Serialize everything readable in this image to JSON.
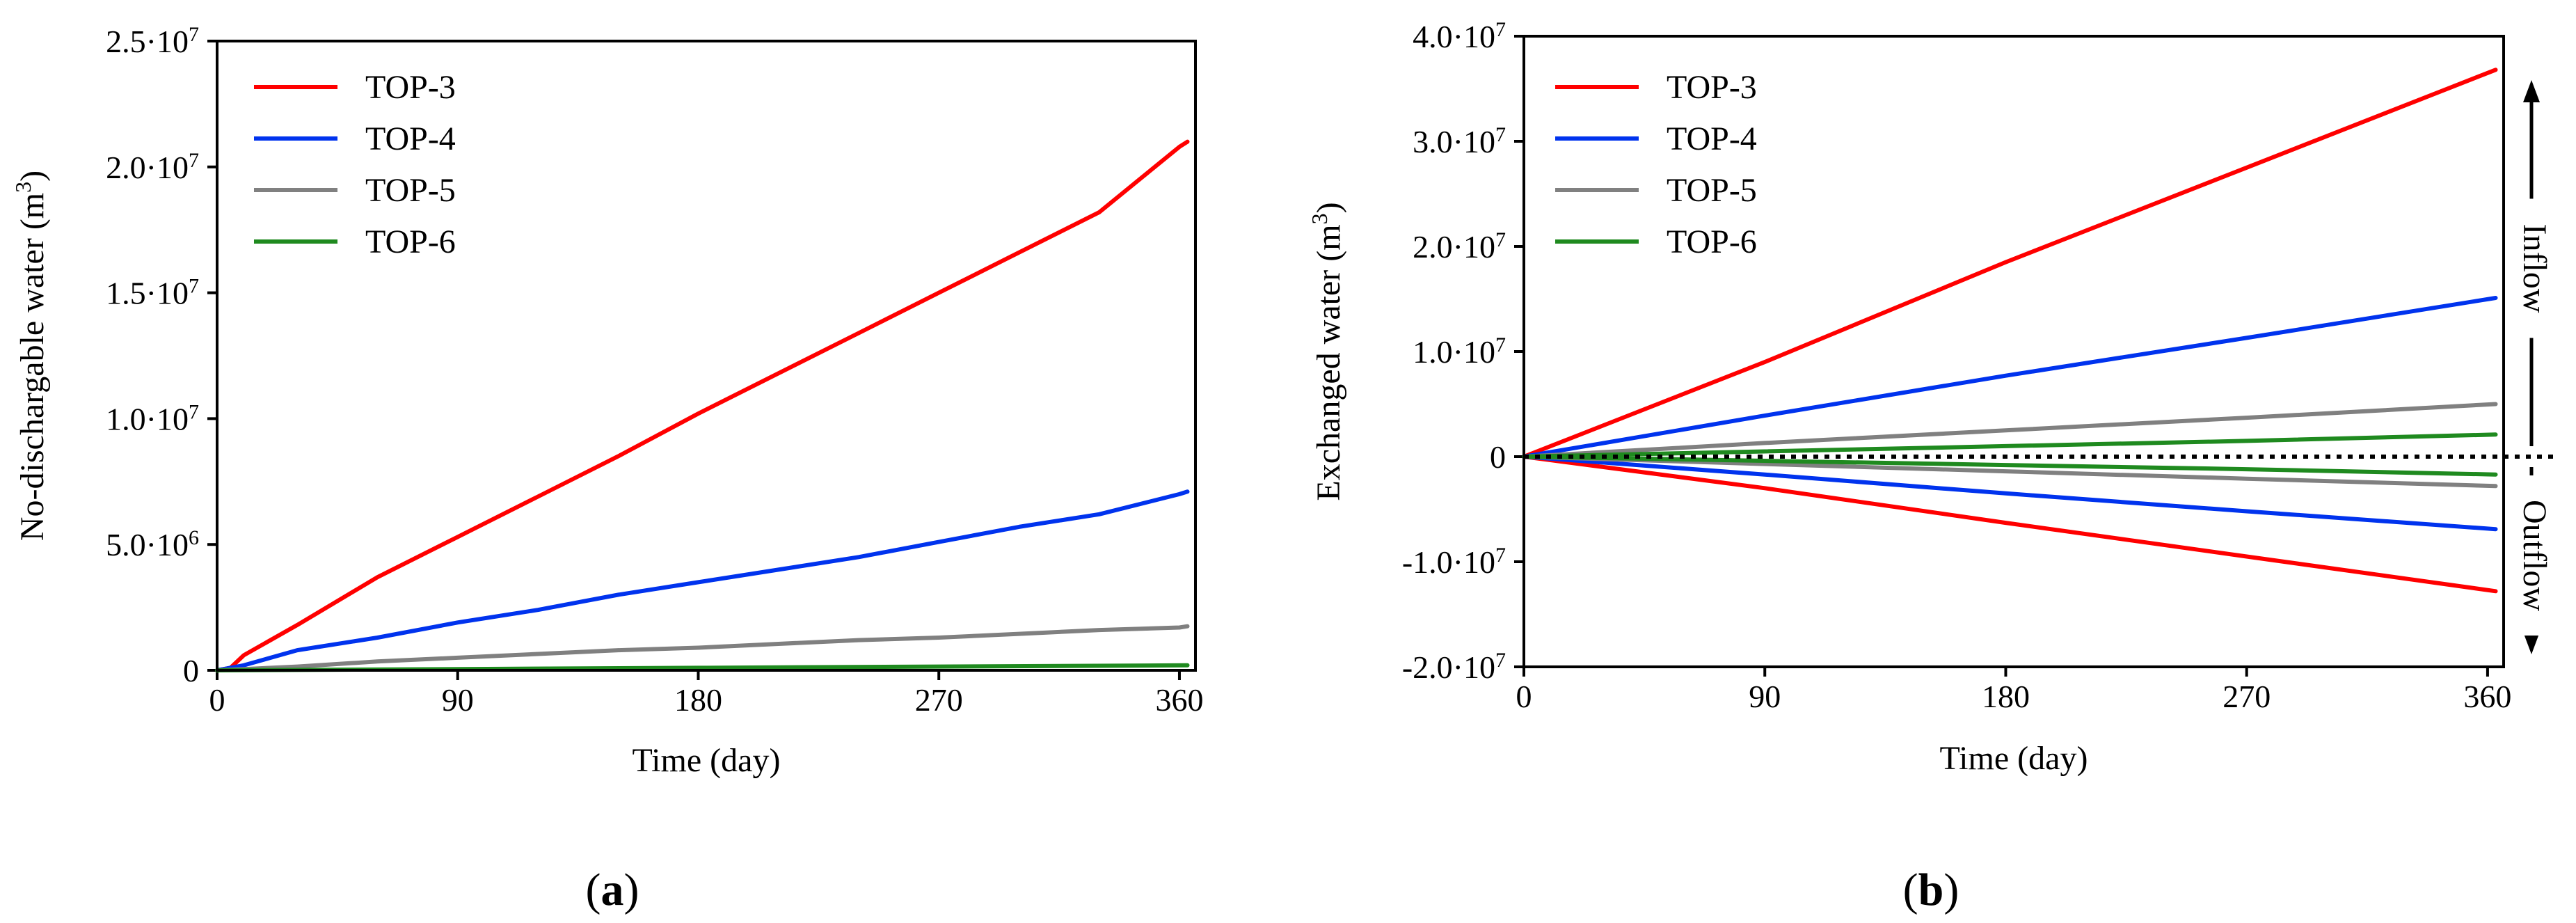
{
  "chart_data": [
    {
      "id": "a",
      "type": "line",
      "panel_label": "a",
      "title": "",
      "xlabel": "Time (day)",
      "ylabel": "No-dischargable water (m³)",
      "xlim": [
        0,
        366
      ],
      "ylim": [
        0,
        25000000
      ],
      "xticks": [
        0,
        90,
        180,
        270,
        360
      ],
      "yticks": [
        {
          "value": 0,
          "base": "0",
          "exp": ""
        },
        {
          "value": 5000000,
          "base": "5.0·10",
          "exp": "6"
        },
        {
          "value": 10000000,
          "base": "1.0·10",
          "exp": "7"
        },
        {
          "value": 15000000,
          "base": "1.5·10",
          "exp": "7"
        },
        {
          "value": 20000000,
          "base": "2.0·10",
          "exp": "7"
        },
        {
          "value": 25000000,
          "base": "2.5·10",
          "exp": "7"
        }
      ],
      "grid": false,
      "legend_position": "top-left",
      "series": [
        {
          "name": "TOP-3",
          "color": "#ff0000",
          "x": [
            0,
            5,
            10,
            30,
            60,
            90,
            120,
            150,
            180,
            210,
            240,
            270,
            300,
            330,
            360,
            363
          ],
          "y": [
            0,
            100000,
            600000,
            1800000,
            3700000,
            5300000,
            6900000,
            8500000,
            10200000,
            11800000,
            13400000,
            15000000,
            16600000,
            18200000,
            20800000,
            21000000
          ]
        },
        {
          "name": "TOP-4",
          "color": "#0033ee",
          "x": [
            0,
            10,
            30,
            60,
            90,
            120,
            150,
            180,
            210,
            240,
            270,
            300,
            330,
            360,
            363
          ],
          "y": [
            0,
            200000,
            800000,
            1300000,
            1900000,
            2400000,
            3000000,
            3500000,
            4000000,
            4500000,
            5100000,
            5700000,
            6200000,
            7000000,
            7100000
          ]
        },
        {
          "name": "TOP-5",
          "color": "#808080",
          "x": [
            0,
            30,
            60,
            90,
            120,
            150,
            180,
            210,
            240,
            270,
            300,
            330,
            360,
            363
          ],
          "y": [
            0,
            150000,
            350000,
            500000,
            650000,
            800000,
            900000,
            1050000,
            1200000,
            1300000,
            1450000,
            1600000,
            1700000,
            1750000
          ]
        },
        {
          "name": "TOP-6",
          "color": "#1f8a1f",
          "x": [
            0,
            90,
            180,
            270,
            363
          ],
          "y": [
            0,
            50000,
            100000,
            150000,
            200000
          ]
        }
      ]
    },
    {
      "id": "b",
      "type": "line",
      "panel_label": "b",
      "title": "",
      "xlabel": "Time (day)",
      "ylabel": "Exchanged water (m³)",
      "xlim": [
        0,
        366
      ],
      "ylim": [
        -20000000,
        40000000
      ],
      "xticks": [
        0,
        90,
        180,
        270,
        360
      ],
      "yticks": [
        {
          "value": -20000000,
          "base": "-2.0·10",
          "exp": "7"
        },
        {
          "value": -10000000,
          "base": "-1.0·10",
          "exp": "7"
        },
        {
          "value": 0,
          "base": "0",
          "exp": ""
        },
        {
          "value": 10000000,
          "base": "1.0·10",
          "exp": "7"
        },
        {
          "value": 20000000,
          "base": "2.0·10",
          "exp": "7"
        },
        {
          "value": 30000000,
          "base": "3.0·10",
          "exp": "7"
        },
        {
          "value": 40000000,
          "base": "4.0·10",
          "exp": "7"
        }
      ],
      "grid": false,
      "legend_position": "top-left",
      "reference_line": 0,
      "annotations": [
        {
          "label": "Inflow",
          "direction": "up"
        },
        {
          "label": "Outflow",
          "direction": "down"
        }
      ],
      "series": [
        {
          "name": "TOP-3",
          "color": "#ff0000",
          "x": [
            0,
            90,
            180,
            270,
            363
          ],
          "y": [
            0,
            9000000,
            18500000,
            27500000,
            36800000
          ]
        },
        {
          "name": "TOP-3 outflow",
          "legend": false,
          "color": "#ff0000",
          "x": [
            0,
            90,
            180,
            270,
            363
          ],
          "y": [
            0,
            -3000000,
            -6300000,
            -9500000,
            -12800000
          ]
        },
        {
          "name": "TOP-4",
          "color": "#0033ee",
          "x": [
            0,
            90,
            180,
            270,
            363
          ],
          "y": [
            0,
            3900000,
            7700000,
            11300000,
            15100000
          ]
        },
        {
          "name": "TOP-4 outflow",
          "legend": false,
          "color": "#0033ee",
          "x": [
            0,
            90,
            180,
            270,
            363
          ],
          "y": [
            0,
            -1700000,
            -3500000,
            -5200000,
            -6900000
          ]
        },
        {
          "name": "TOP-5",
          "color": "#808080",
          "x": [
            0,
            90,
            180,
            270,
            363
          ],
          "y": [
            0,
            1300000,
            2500000,
            3700000,
            5000000
          ]
        },
        {
          "name": "TOP-5 outflow",
          "legend": false,
          "color": "#808080",
          "x": [
            0,
            90,
            180,
            270,
            363
          ],
          "y": [
            0,
            -700000,
            -1400000,
            -2100000,
            -2800000
          ]
        },
        {
          "name": "TOP-6",
          "color": "#1f8a1f",
          "x": [
            0,
            90,
            180,
            270,
            363
          ],
          "y": [
            0,
            500000,
            1000000,
            1500000,
            2100000
          ]
        },
        {
          "name": "TOP-6 outflow",
          "legend": false,
          "color": "#1f8a1f",
          "x": [
            0,
            90,
            180,
            270,
            363
          ],
          "y": [
            0,
            -400000,
            -800000,
            -1200000,
            -1700000
          ]
        }
      ]
    }
  ]
}
